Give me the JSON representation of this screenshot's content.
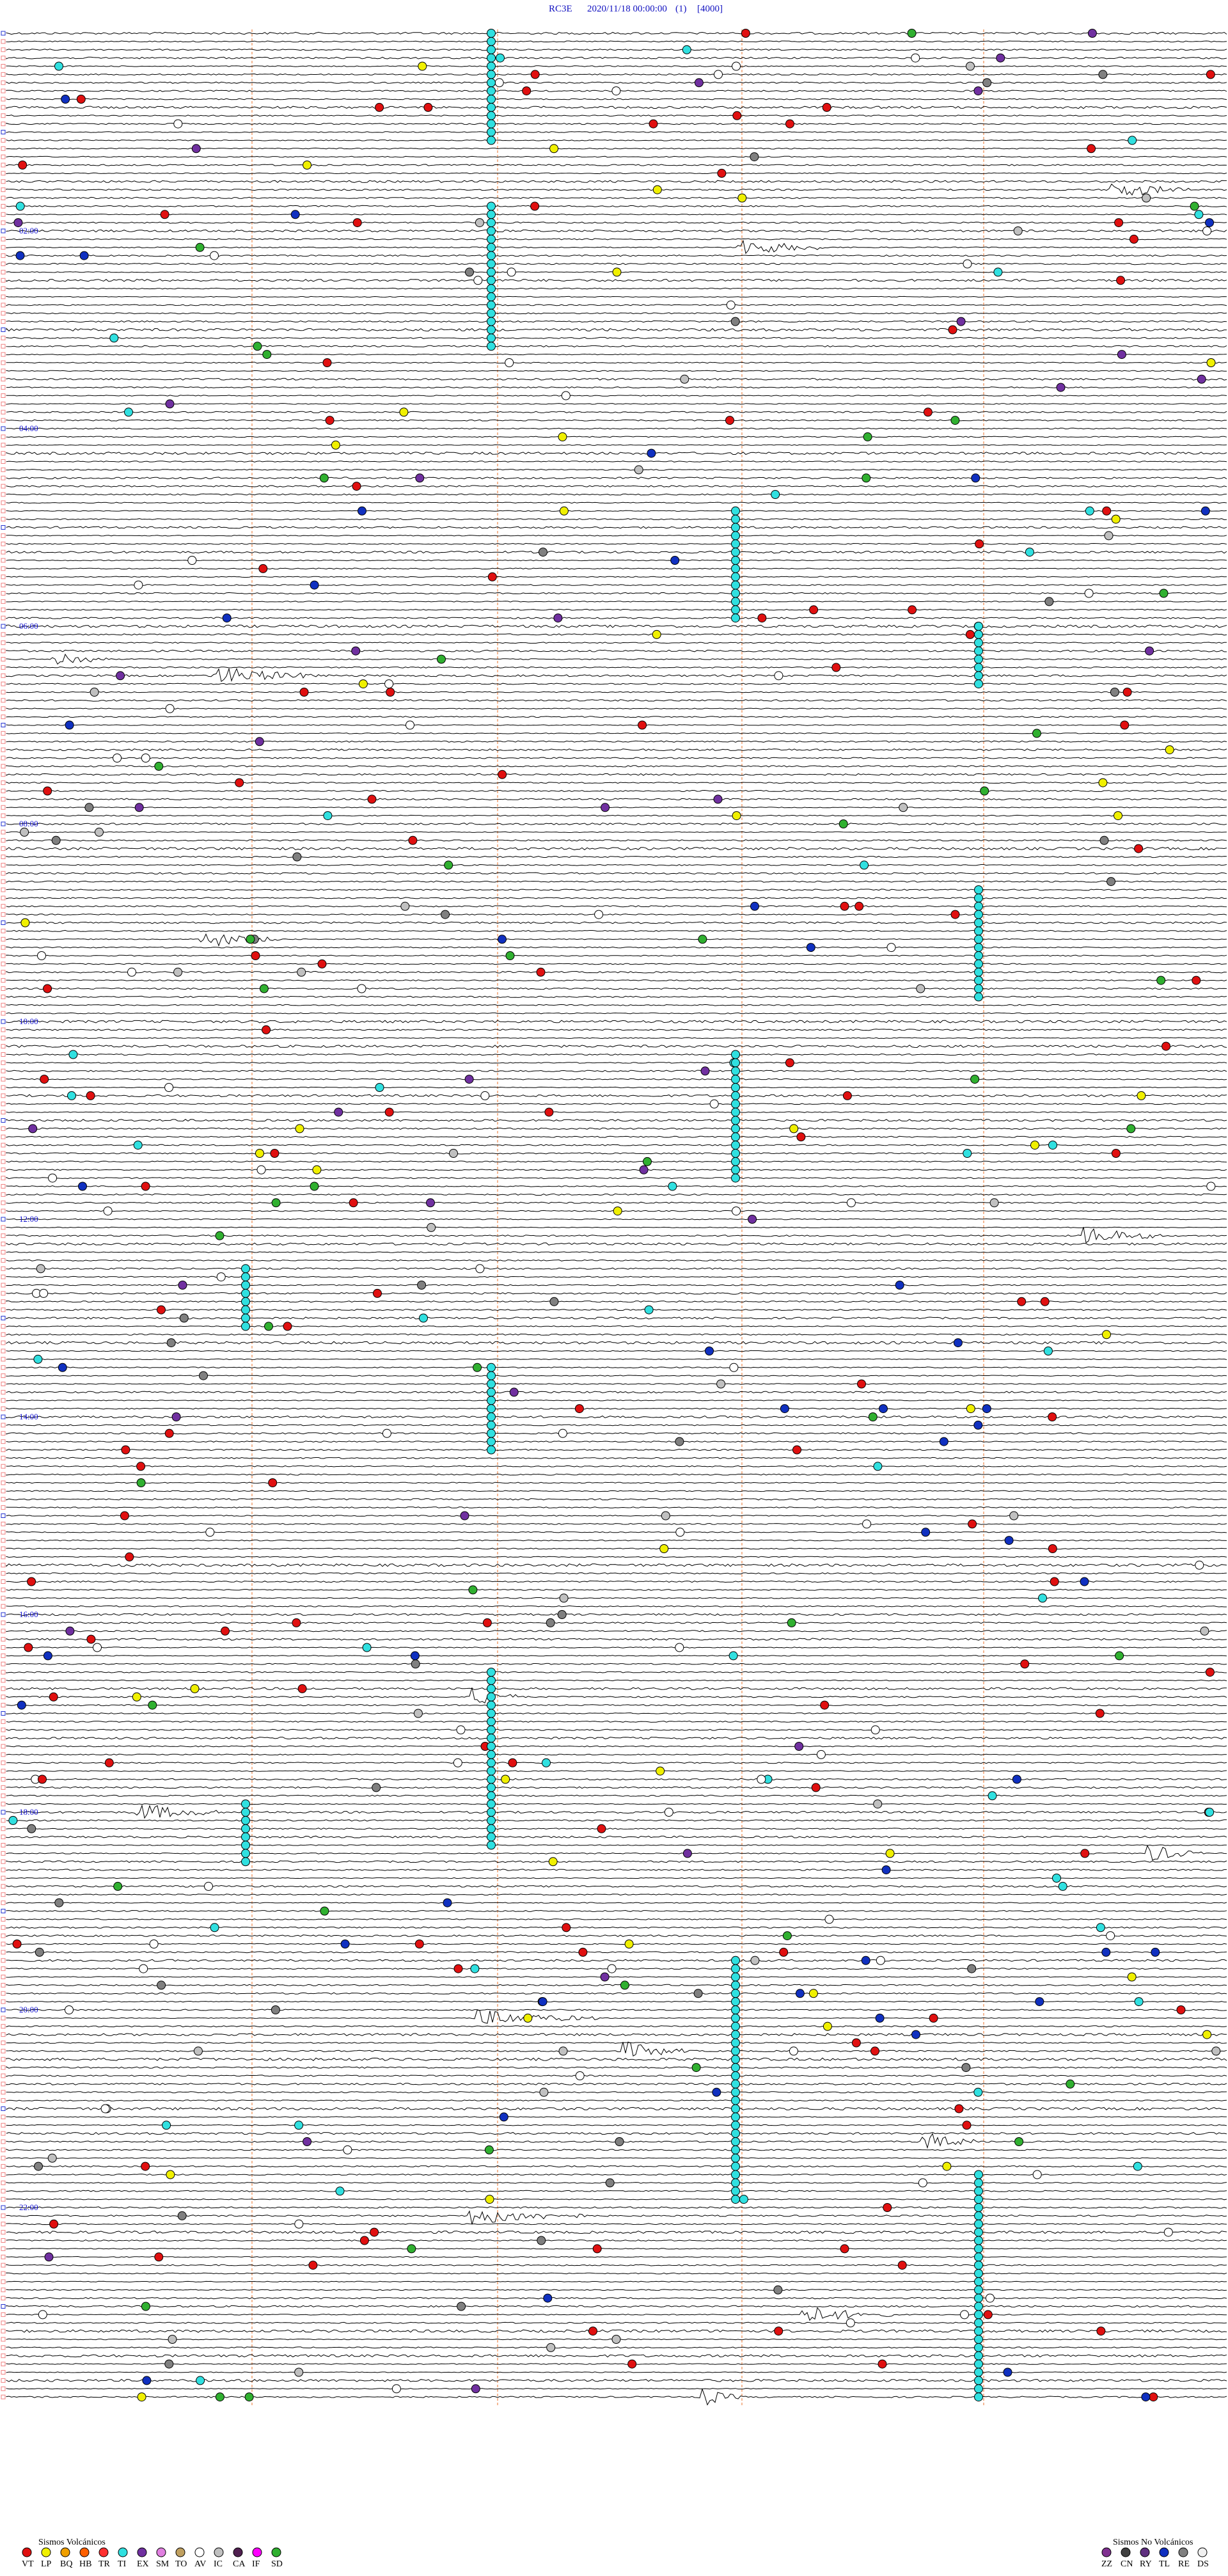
{
  "header": {
    "station": "RC3E",
    "datetime": "2020/11/18 00:00:00",
    "channel": "(1)",
    "scale": "[4000]"
  },
  "time_labels": [
    "02:00",
    "04:00",
    "06:00",
    "08:00",
    "10:00",
    "12:00",
    "14:00",
    "16:00",
    "18:00",
    "20:00",
    "22:00"
  ],
  "legend": {
    "volcanic": {
      "title": "Sismos Volcánicos",
      "items": [
        {
          "code": "VT",
          "color": "#e01010"
        },
        {
          "code": "LP",
          "color": "#f0f000"
        },
        {
          "code": "BQ",
          "color": "#f0a000"
        },
        {
          "code": "HB",
          "color": "#ff6000"
        },
        {
          "code": "TR",
          "color": "#ff3030"
        },
        {
          "code": "TI",
          "color": "#30e0e0"
        },
        {
          "code": "EX",
          "color": "#7030a0"
        },
        {
          "code": "SM",
          "color": "#e080e0"
        },
        {
          "code": "TO",
          "color": "#c0a060"
        },
        {
          "code": "AV",
          "color": "#ffffff"
        },
        {
          "code": "IC",
          "color": "#c0c0c0"
        },
        {
          "code": "CA",
          "color": "#502050"
        },
        {
          "code": "IF",
          "color": "#ff00ff"
        },
        {
          "code": "SD",
          "color": "#30b030"
        }
      ]
    },
    "non_volcanic": {
      "title": "Sismos No Volcánicos",
      "items": [
        {
          "code": "ZZ",
          "color": "#803090"
        },
        {
          "code": "CN",
          "color": "#404040"
        },
        {
          "code": "RY",
          "color": "#603080"
        },
        {
          "code": "TL",
          "color": "#1030c0"
        },
        {
          "code": "RE",
          "color": "#808080"
        },
        {
          "code": "DS",
          "color": "#f0f0f0"
        }
      ]
    }
  }
}
